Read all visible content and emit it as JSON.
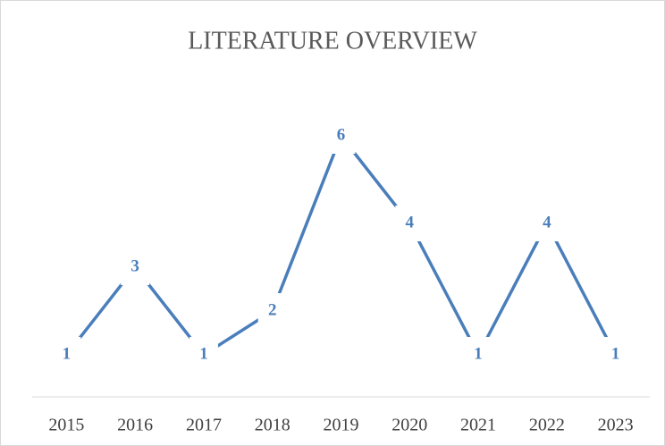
{
  "chart_data": {
    "type": "line",
    "title": "LITERATURE OVERVIEW",
    "categories": [
      "2015",
      "2016",
      "2017",
      "2018",
      "2019",
      "2020",
      "2021",
      "2022",
      "2023"
    ],
    "values": [
      1,
      3,
      1,
      2,
      6,
      4,
      1,
      4,
      1
    ],
    "color": "#4a7ebb"
  }
}
